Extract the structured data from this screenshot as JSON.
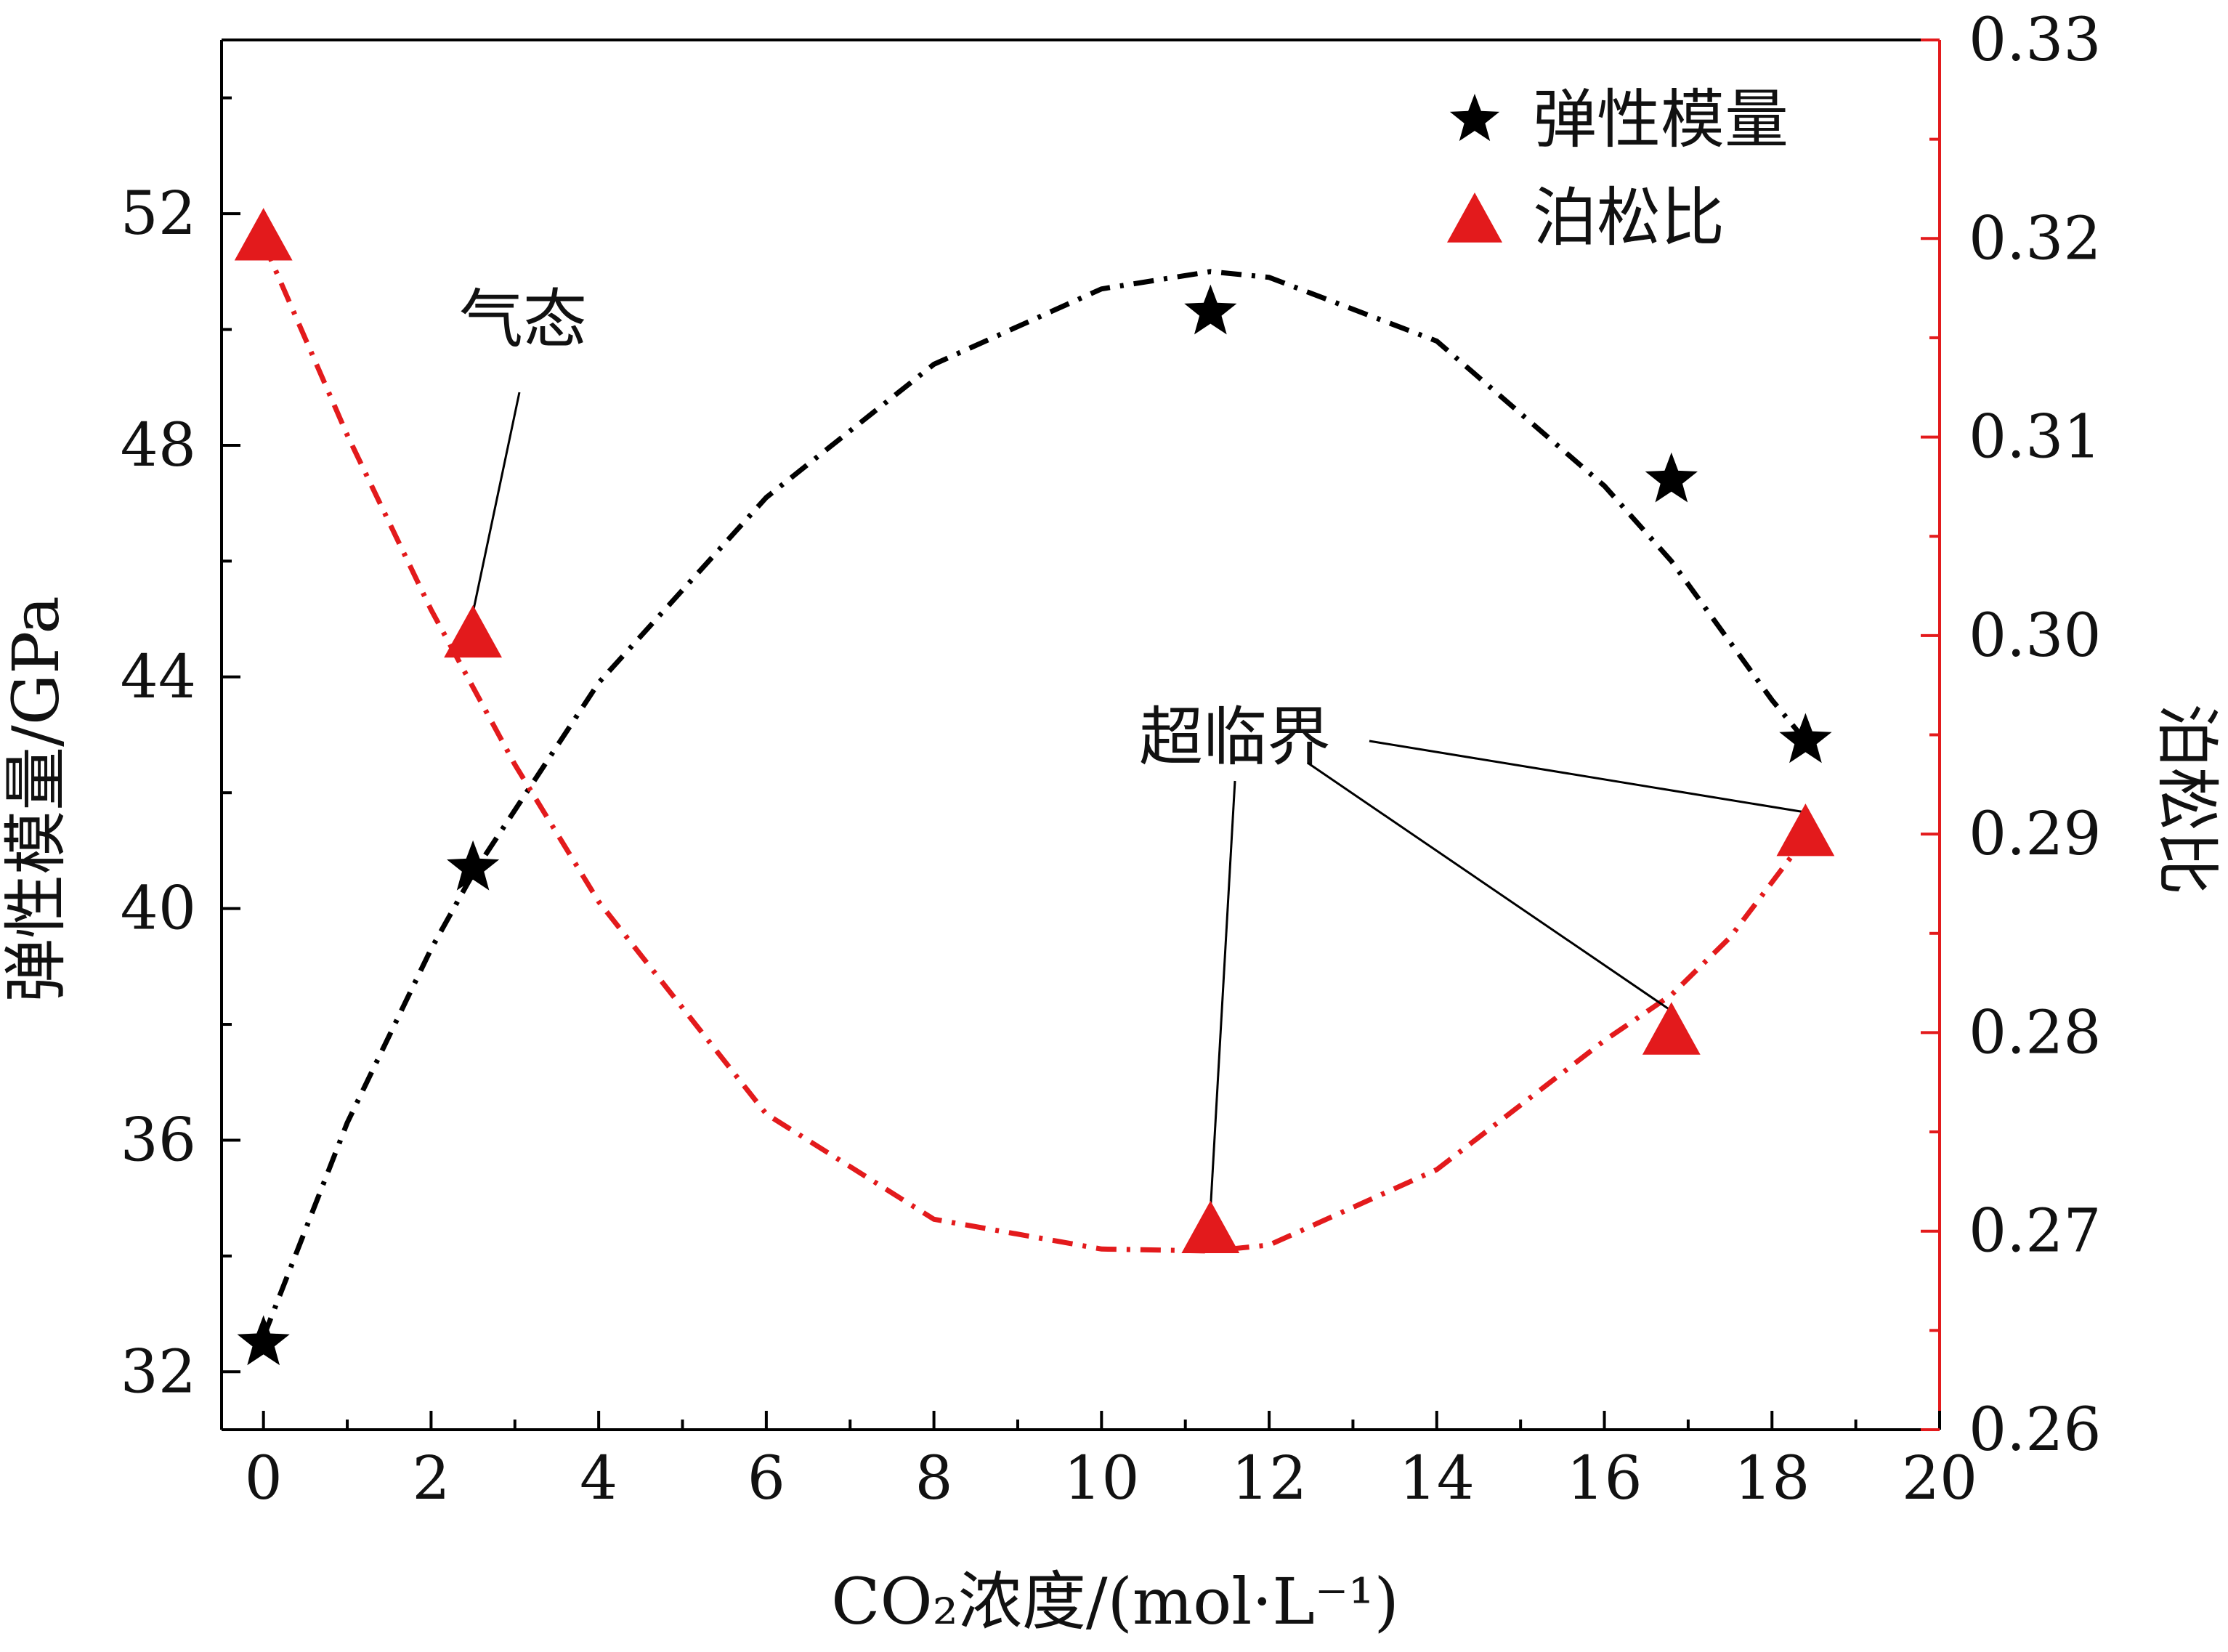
{
  "chart_data": {
    "type": "scatter",
    "title": "",
    "xlabel": "CO₂浓度/(mol·L⁻¹)",
    "ylabel": "弹性模量/GPa",
    "y2label": "泊松比",
    "xlim": [
      -0.5,
      20
    ],
    "ylim": [
      31,
      55
    ],
    "y2lim": [
      0.26,
      0.33
    ],
    "x_ticks": [
      0,
      2,
      4,
      6,
      8,
      10,
      12,
      14,
      16,
      18,
      20
    ],
    "y_ticks": [
      32,
      36,
      40,
      44,
      48,
      52
    ],
    "y2_ticks": [
      "0.26",
      "0.27",
      "0.28",
      "0.29",
      "0.30",
      "0.31",
      "0.32",
      "0.33"
    ],
    "grid": false,
    "legend_position": "top-right",
    "series": [
      {
        "name": "弹性模量",
        "axis": "left",
        "marker": "star",
        "color": "#000000",
        "x": [
          0,
          2.5,
          11.3,
          16.8,
          18.4
        ],
        "values": [
          32.5,
          40.7,
          50.3,
          47.4,
          42.9
        ],
        "fit_x": [
          0,
          1,
          2,
          2.5,
          4,
          6,
          8,
          10,
          11.3,
          12,
          14,
          16,
          16.8,
          18,
          18.4
        ],
        "fit_y": [
          32.6,
          36.3,
          39.3,
          40.6,
          43.9,
          47.1,
          49.4,
          50.7,
          51.0,
          50.9,
          49.8,
          47.3,
          46.0,
          43.6,
          42.9
        ]
      },
      {
        "name": "泊松比",
        "axis": "right",
        "marker": "triangle",
        "color": "#e31a1c",
        "x": [
          0,
          2.5,
          11.3,
          16.8,
          18.4
        ],
        "values": [
          0.32,
          0.3,
          0.27,
          0.28,
          0.29
        ],
        "fit_x": [
          0,
          1,
          2,
          3,
          4,
          6,
          8,
          10,
          11.3,
          12,
          14,
          16,
          16.8,
          17.5,
          18.4
        ],
        "fit_y": [
          0.3198,
          0.3101,
          0.3013,
          0.2935,
          0.2866,
          0.2759,
          0.2706,
          0.2691,
          0.269,
          0.2693,
          0.2731,
          0.2796,
          0.2819,
          0.2848,
          0.2898
        ]
      }
    ],
    "annotations": [
      {
        "text": "气态",
        "targets": [
          [
            2.5,
            0.3
          ]
        ]
      },
      {
        "text": "超临界",
        "targets": [
          [
            11.3,
            0.27
          ],
          [
            16.8,
            0.28
          ],
          [
            18.4,
            0.29
          ]
        ]
      }
    ]
  }
}
